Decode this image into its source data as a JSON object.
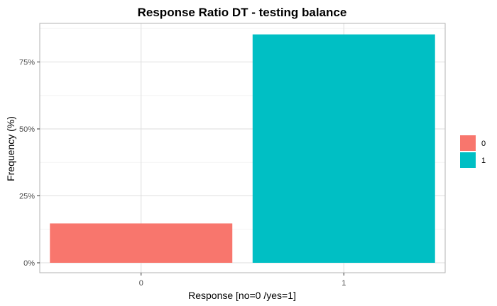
{
  "chart_data": {
    "type": "bar",
    "title": "Response Ratio DT - testing balance",
    "xlabel": "Response [no=0 /yes=1]",
    "ylabel": "Frequency (%)",
    "categories": [
      "0",
      "1"
    ],
    "values": [
      14.7,
      85.3
    ],
    "colors": [
      "#F8766D",
      "#00BFC4"
    ],
    "ylim": [
      0,
      86
    ],
    "yticks": [
      {
        "value": 0,
        "label": "0%"
      },
      {
        "value": 25,
        "label": "25%"
      },
      {
        "value": 50,
        "label": "50%"
      },
      {
        "value": 75,
        "label": "75%"
      }
    ],
    "grid": true,
    "legend": {
      "position": "right",
      "entries": [
        {
          "label": "0",
          "color": "#F8766D"
        },
        {
          "label": "1",
          "color": "#00BFC4"
        }
      ]
    }
  }
}
